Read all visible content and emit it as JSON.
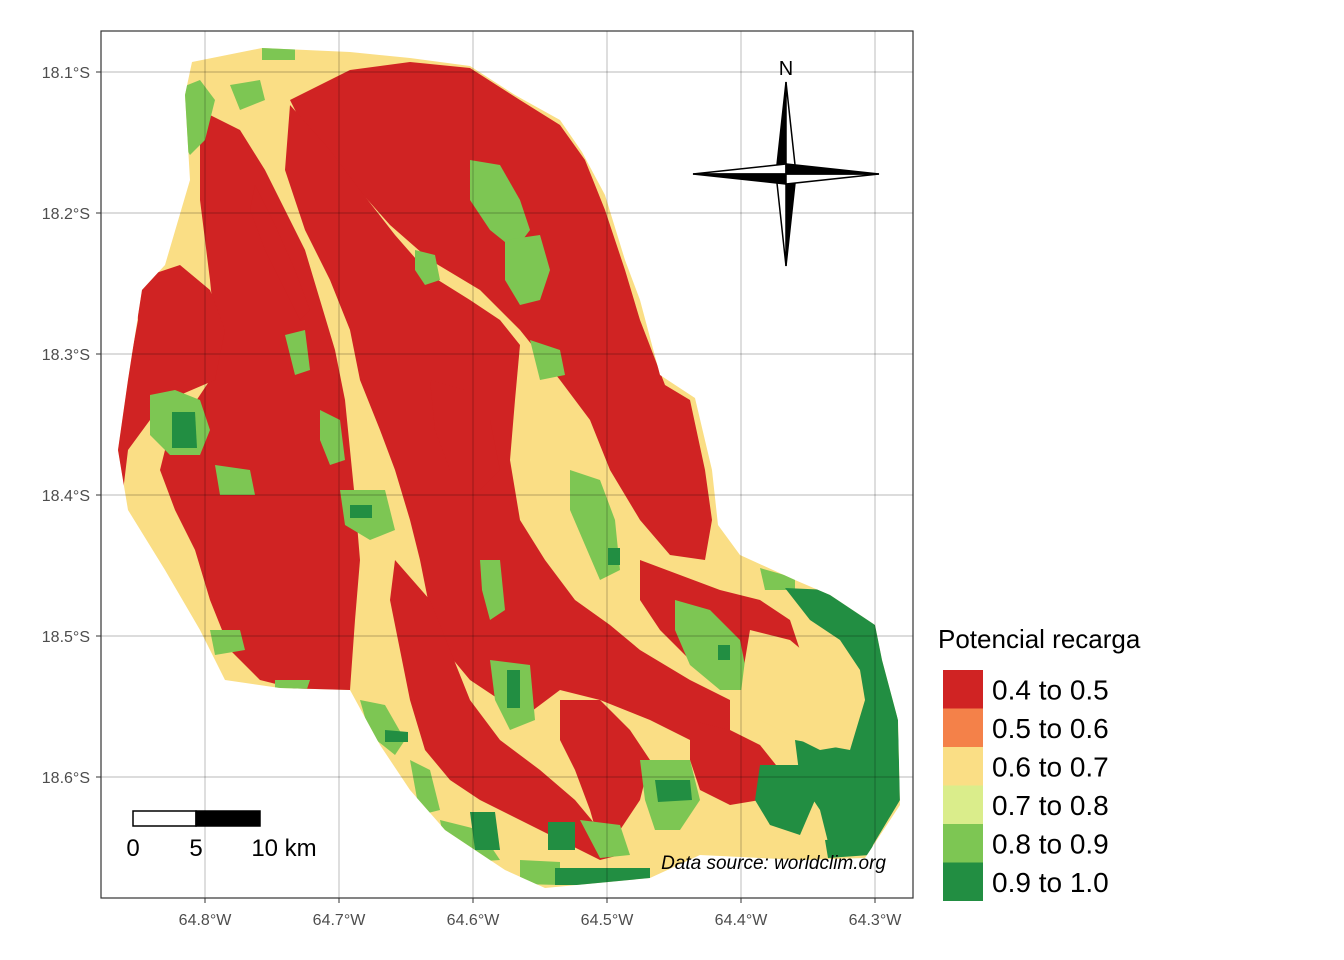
{
  "map": {
    "latitude_ticks": [
      "18.1°S",
      "18.2°S",
      "18.3°S",
      "18.4°S",
      "18.5°S",
      "18.6°S"
    ],
    "longitude_ticks": [
      "64.8°W",
      "64.7°W",
      "64.6°W",
      "64.5°W",
      "64.4°W",
      "64.3°W"
    ],
    "caption": "Data source: worldclim.org",
    "north_arrow": {
      "label": "N"
    },
    "scale_bar": {
      "labels": [
        "0",
        "5",
        "10 km"
      ]
    },
    "grid": true
  },
  "legend": {
    "title": "Potencial recarga",
    "classes": [
      {
        "label": "0.4 to 0.5",
        "color": "#D02323"
      },
      {
        "label": "0.5 to 0.6",
        "color": "#F48149"
      },
      {
        "label": "0.6 to 0.7",
        "color": "#FADE85"
      },
      {
        "label": "0.7 to 0.8",
        "color": "#DAED8B"
      },
      {
        "label": "0.8 to 0.9",
        "color": "#7DC653"
      },
      {
        "label": "0.9 to 1.0",
        "color": "#228E42"
      }
    ]
  }
}
